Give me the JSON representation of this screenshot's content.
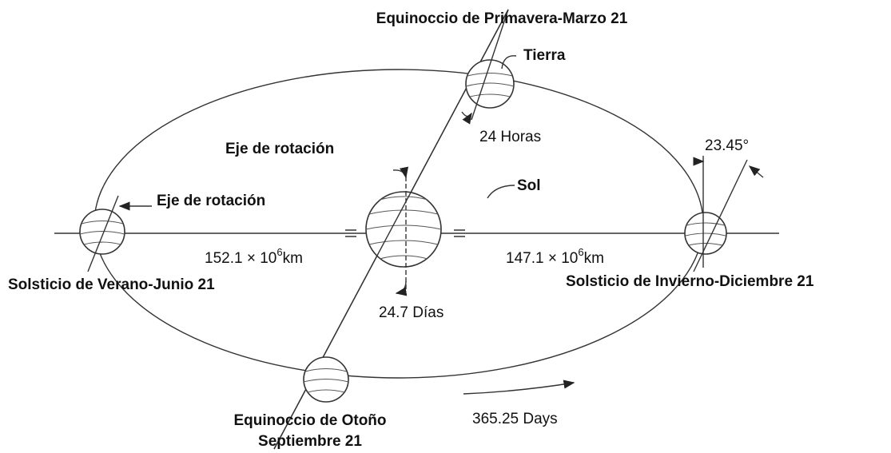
{
  "labels": {
    "spring": "Equinoccio de Primavera-Marzo 21",
    "earth": "Tierra",
    "hours": "24 Horas",
    "axis_sun": "Eje de rotación",
    "sun": "Sol",
    "axis_earth": "Eje de rotación",
    "angle": "23.45°",
    "summer": "Solsticio de Verano-Junio 21",
    "winter": "Solsticio de Invierno-Diciembre 21",
    "days_sun": "24.7 Días",
    "autumn_1": "Equinoccio de Otoño",
    "autumn_2": "Septiembre 21",
    "year": "365.25 Days"
  },
  "distances": {
    "left": {
      "mantissa": "152.1 × 10",
      "exponent": "6",
      "unit": "km"
    },
    "right": {
      "mantissa": "147.1 × 10",
      "exponent": "6",
      "unit": "km"
    }
  }
}
